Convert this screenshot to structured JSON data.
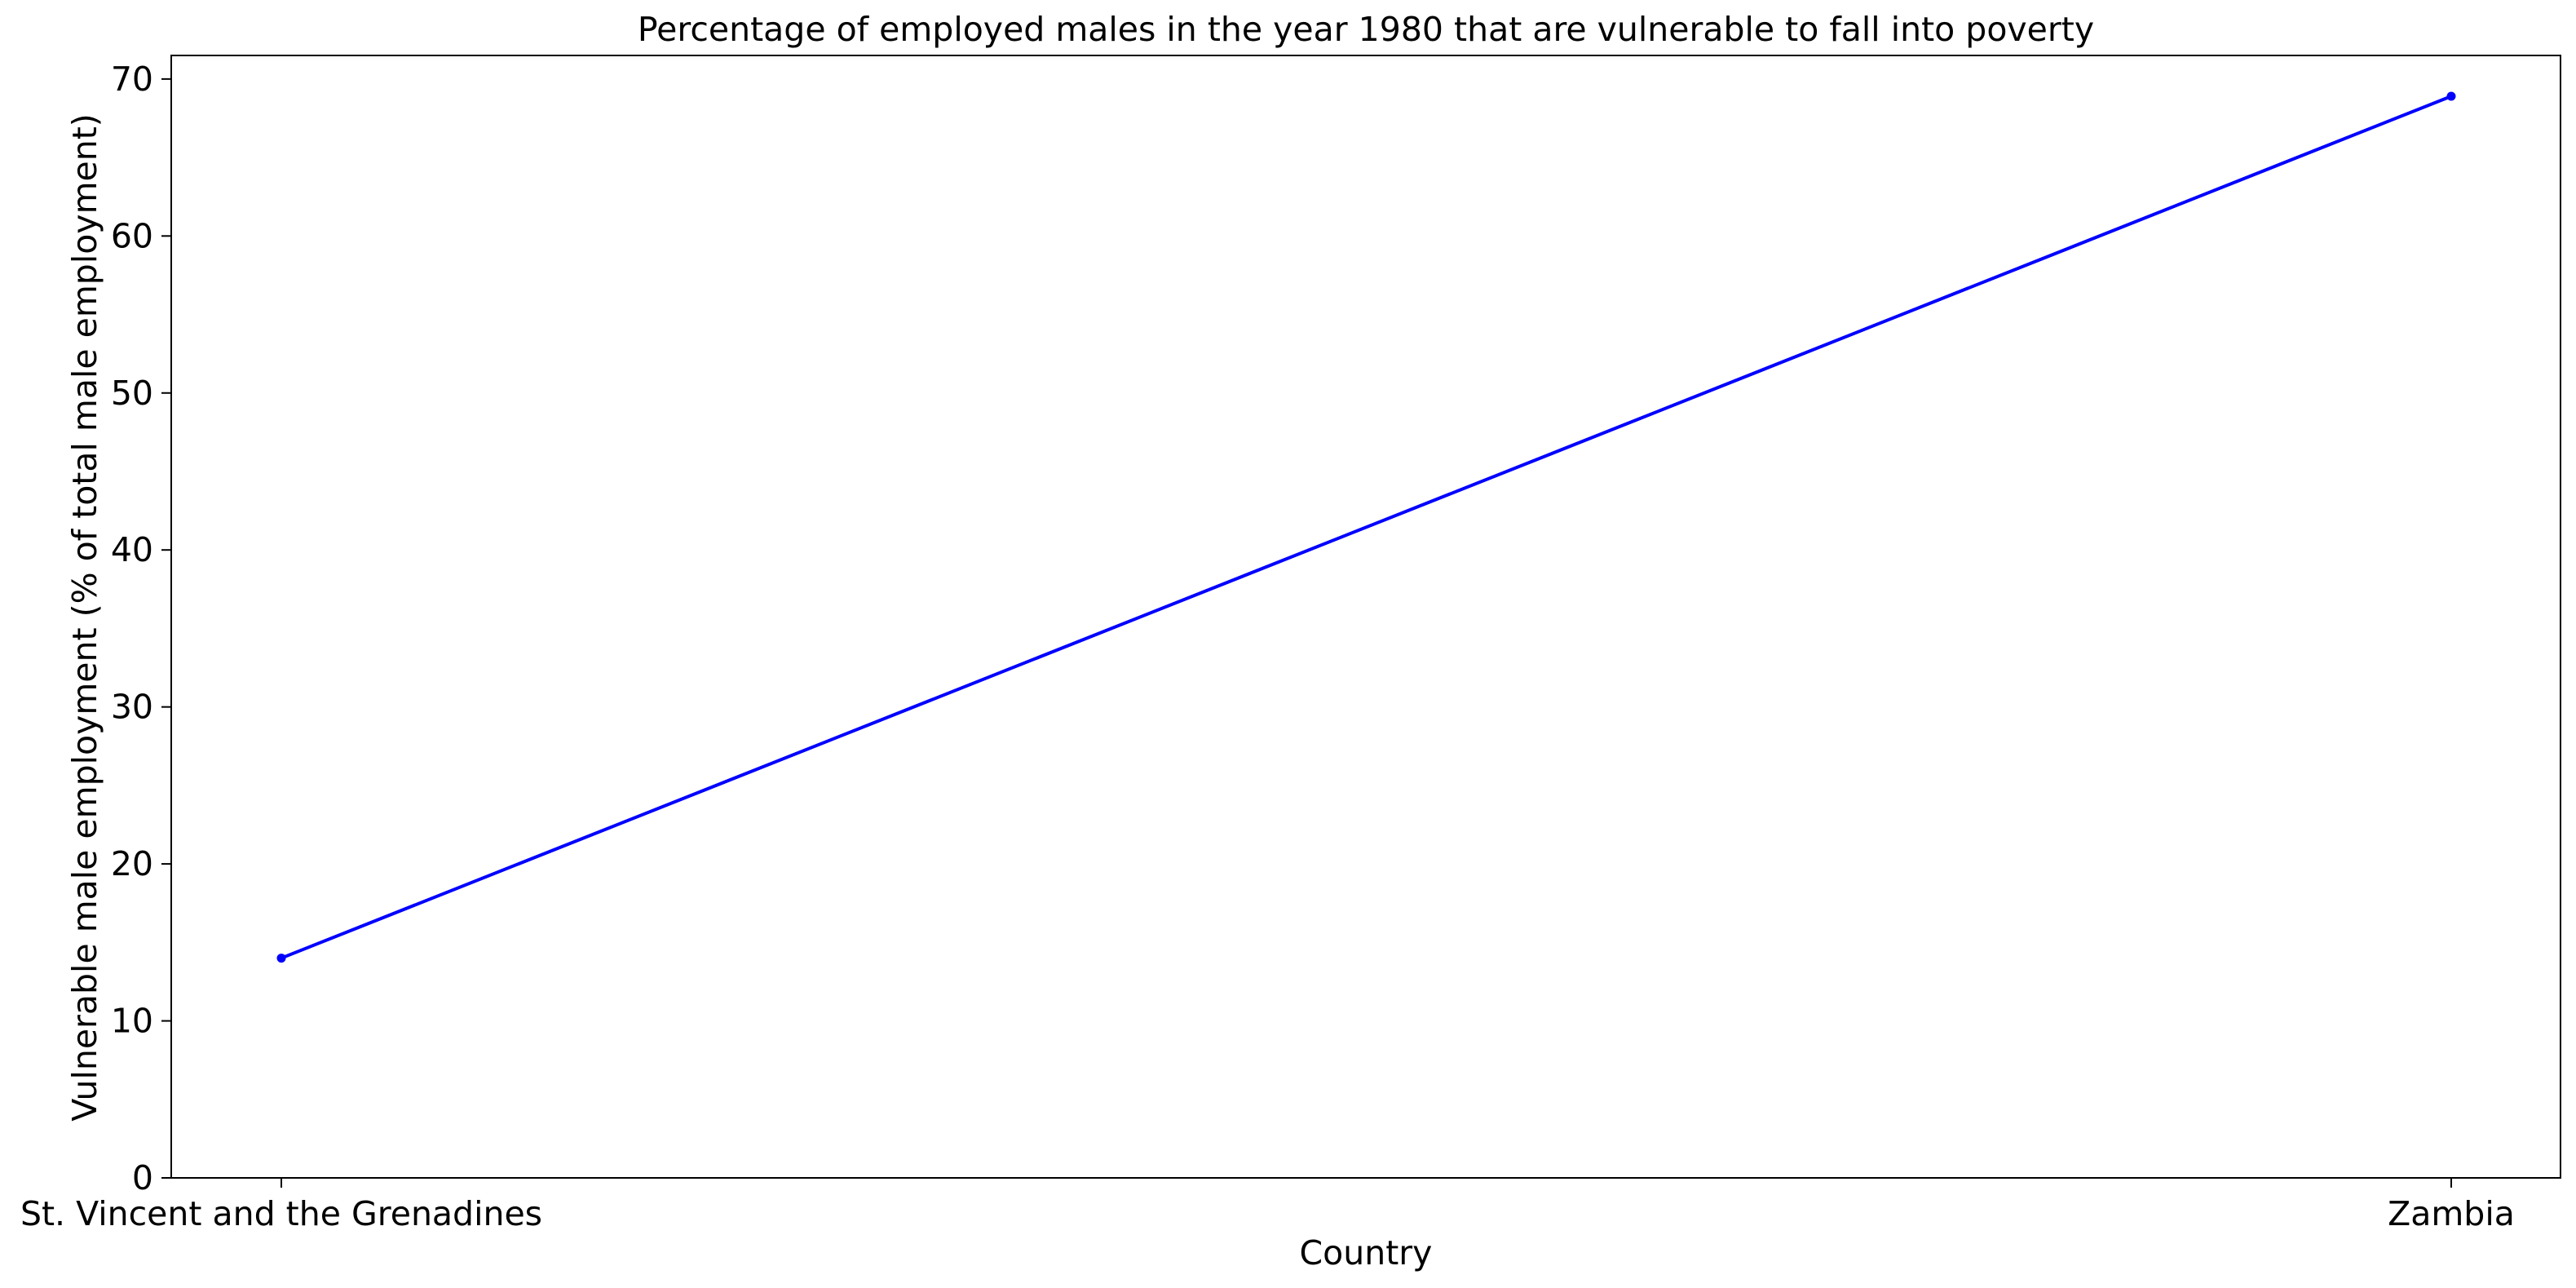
{
  "chart_data": {
    "type": "line",
    "title": "Percentage of employed males in the year 1980 that are vulnerable to fall into poverty",
    "xlabel": "Country",
    "ylabel": "Vulnerable male employment (% of total male employment)",
    "categories": [
      "St. Vincent and the Grenadines",
      "Zambia"
    ],
    "series": [
      {
        "values": [
          14.0,
          68.9
        ]
      }
    ],
    "ylim": [
      0,
      71.5
    ],
    "yticks": [
      0,
      10,
      20,
      30,
      40,
      50,
      60,
      70
    ],
    "grid": false,
    "legend": "none",
    "colors": {
      "line": "#0000ff",
      "axes": "#000000",
      "background": "#ffffff"
    }
  }
}
